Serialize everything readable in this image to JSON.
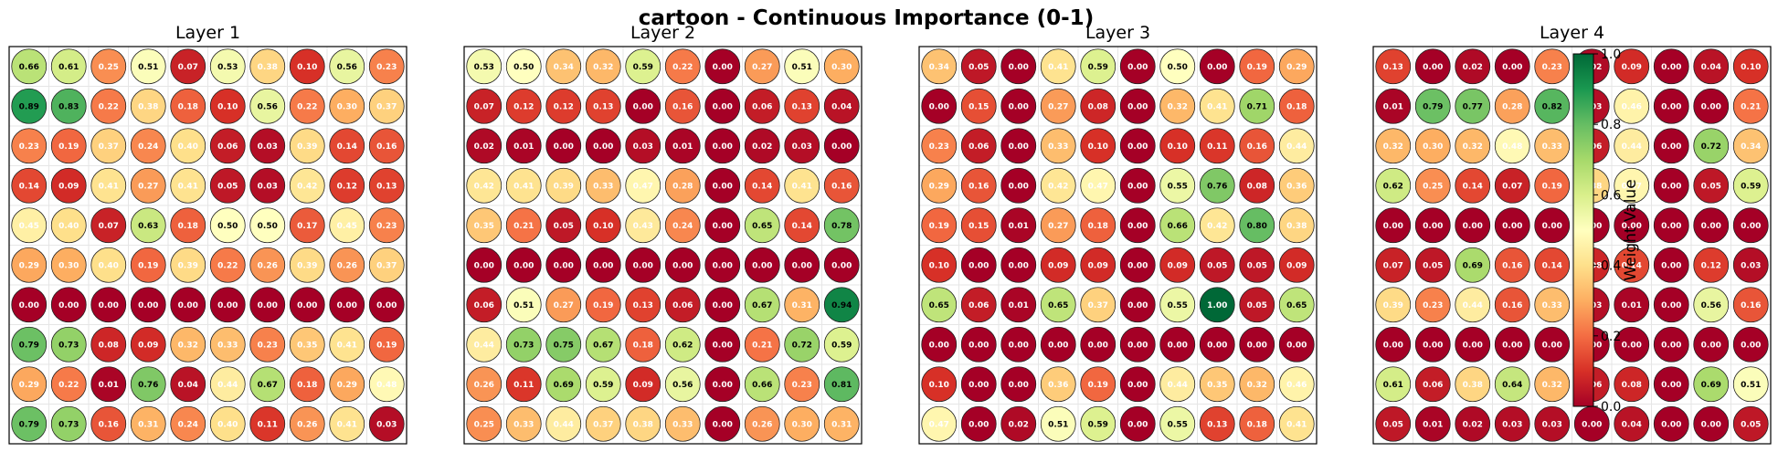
{
  "title": "cartoon - Continuous Importance (0-1)",
  "chart_data": [
    {
      "type": "heatmap",
      "title": "Layer 1",
      "rows": 10,
      "cols": 10,
      "values": [
        [
          0.66,
          0.61,
          0.25,
          0.51,
          0.07,
          0.53,
          0.38,
          0.1,
          0.56,
          0.23
        ],
        [
          0.89,
          0.83,
          0.22,
          0.38,
          0.18,
          0.1,
          0.56,
          0.22,
          0.3,
          0.37
        ],
        [
          0.23,
          0.19,
          0.37,
          0.24,
          0.4,
          0.06,
          0.03,
          0.39,
          0.14,
          0.16
        ],
        [
          0.14,
          0.09,
          0.41,
          0.27,
          0.41,
          0.05,
          0.03,
          0.42,
          0.12,
          0.13
        ],
        [
          0.45,
          0.4,
          0.07,
          0.63,
          0.18,
          0.5,
          0.5,
          0.17,
          0.45,
          0.23
        ],
        [
          0.29,
          0.3,
          0.4,
          0.19,
          0.39,
          0.22,
          0.26,
          0.39,
          0.26,
          0.37
        ],
        [
          0.0,
          0.0,
          0.0,
          0.0,
          0.0,
          0.0,
          0.0,
          0.0,
          0.0,
          0.0
        ],
        [
          0.79,
          0.73,
          0.08,
          0.09,
          0.32,
          0.33,
          0.23,
          0.35,
          0.41,
          0.19
        ],
        [
          0.29,
          0.22,
          0.01,
          0.76,
          0.04,
          0.44,
          0.67,
          0.18,
          0.29,
          0.48
        ],
        [
          0.79,
          0.73,
          0.16,
          0.31,
          0.24,
          0.4,
          0.11,
          0.26,
          0.41,
          0.03
        ]
      ]
    },
    {
      "type": "heatmap",
      "title": "Layer 2",
      "rows": 10,
      "cols": 10,
      "values": [
        [
          0.53,
          0.5,
          0.34,
          0.32,
          0.59,
          0.22,
          0.0,
          0.27,
          0.51,
          0.3
        ],
        [
          0.07,
          0.12,
          0.12,
          0.13,
          0.0,
          0.16,
          0.0,
          0.06,
          0.13,
          0.04
        ],
        [
          0.02,
          0.01,
          0.0,
          0.0,
          0.03,
          0.01,
          0.0,
          0.02,
          0.03,
          0.0
        ],
        [
          0.42,
          0.41,
          0.39,
          0.33,
          0.47,
          0.28,
          0.0,
          0.14,
          0.41,
          0.16
        ],
        [
          0.35,
          0.21,
          0.05,
          0.1,
          0.43,
          0.24,
          0.0,
          0.65,
          0.14,
          0.78
        ],
        [
          0.0,
          0.0,
          0.0,
          0.0,
          0.0,
          0.0,
          0.0,
          0.0,
          0.0,
          0.0
        ],
        [
          0.06,
          0.51,
          0.27,
          0.19,
          0.13,
          0.06,
          0.0,
          0.67,
          0.31,
          0.94
        ],
        [
          0.44,
          0.73,
          0.75,
          0.67,
          0.18,
          0.62,
          0.0,
          0.21,
          0.72,
          0.59
        ],
        [
          0.26,
          0.11,
          0.69,
          0.59,
          0.09,
          0.56,
          0.0,
          0.66,
          0.23,
          0.81
        ],
        [
          0.25,
          0.33,
          0.44,
          0.37,
          0.38,
          0.33,
          0.0,
          0.26,
          0.3,
          0.31
        ]
      ]
    },
    {
      "type": "heatmap",
      "title": "Layer 3",
      "rows": 10,
      "cols": 10,
      "values": [
        [
          0.34,
          0.05,
          0.0,
          0.41,
          0.59,
          0.0,
          0.5,
          0.0,
          0.19,
          0.29
        ],
        [
          0.0,
          0.15,
          0.0,
          0.27,
          0.08,
          0.0,
          0.32,
          0.41,
          0.71,
          0.18
        ],
        [
          0.23,
          0.06,
          0.0,
          0.33,
          0.1,
          0.0,
          0.1,
          0.11,
          0.16,
          0.44
        ],
        [
          0.29,
          0.16,
          0.0,
          0.42,
          0.47,
          0.0,
          0.55,
          0.76,
          0.08,
          0.36
        ],
        [
          0.19,
          0.15,
          0.01,
          0.27,
          0.18,
          0.0,
          0.66,
          0.42,
          0.8,
          0.38
        ],
        [
          0.1,
          0.0,
          0.0,
          0.09,
          0.09,
          0.0,
          0.09,
          0.05,
          0.05,
          0.09
        ],
        [
          0.65,
          0.06,
          0.01,
          0.65,
          0.37,
          0.0,
          0.55,
          1.0,
          0.05,
          0.65
        ],
        [
          0.0,
          0.0,
          0.0,
          0.0,
          0.0,
          0.0,
          0.0,
          0.0,
          0.0,
          0.0
        ],
        [
          0.1,
          0.0,
          0.0,
          0.36,
          0.19,
          0.0,
          0.44,
          0.35,
          0.32,
          0.46
        ],
        [
          0.47,
          0.0,
          0.02,
          0.51,
          0.59,
          0.0,
          0.55,
          0.13,
          0.18,
          0.41
        ]
      ]
    },
    {
      "type": "heatmap",
      "title": "Layer 4",
      "rows": 10,
      "cols": 10,
      "values": [
        [
          0.13,
          0.0,
          0.02,
          0.0,
          0.23,
          0.02,
          0.09,
          0.0,
          0.04,
          0.1
        ],
        [
          0.01,
          0.79,
          0.77,
          0.28,
          0.82,
          0.03,
          0.46,
          0.0,
          0.0,
          0.21
        ],
        [
          0.32,
          0.3,
          0.32,
          0.48,
          0.33,
          0.06,
          0.44,
          0.0,
          0.72,
          0.34
        ],
        [
          0.62,
          0.25,
          0.14,
          0.07,
          0.19,
          0.38,
          0.47,
          0.0,
          0.05,
          0.59
        ],
        [
          0.0,
          0.0,
          0.0,
          0.0,
          0.0,
          0.0,
          0.0,
          0.0,
          0.0,
          0.0
        ],
        [
          0.07,
          0.05,
          0.69,
          0.16,
          0.14,
          0.08,
          0.14,
          0.0,
          0.12,
          0.03
        ],
        [
          0.39,
          0.23,
          0.44,
          0.16,
          0.33,
          0.03,
          0.01,
          0.0,
          0.56,
          0.16
        ],
        [
          0.0,
          0.0,
          0.0,
          0.0,
          0.0,
          0.0,
          0.0,
          0.0,
          0.0,
          0.0
        ],
        [
          0.61,
          0.06,
          0.38,
          0.64,
          0.32,
          0.06,
          0.08,
          0.0,
          0.69,
          0.51
        ],
        [
          0.05,
          0.01,
          0.02,
          0.03,
          0.03,
          0.0,
          0.04,
          0.0,
          0.0,
          0.05
        ]
      ]
    }
  ],
  "colorbar": {
    "label": "Weight Value",
    "ticks": [
      "0.0",
      "0.2",
      "0.4",
      "0.6",
      "0.8",
      "1.0"
    ],
    "range": [
      0,
      1
    ],
    "colormap": "RdYlGn"
  }
}
